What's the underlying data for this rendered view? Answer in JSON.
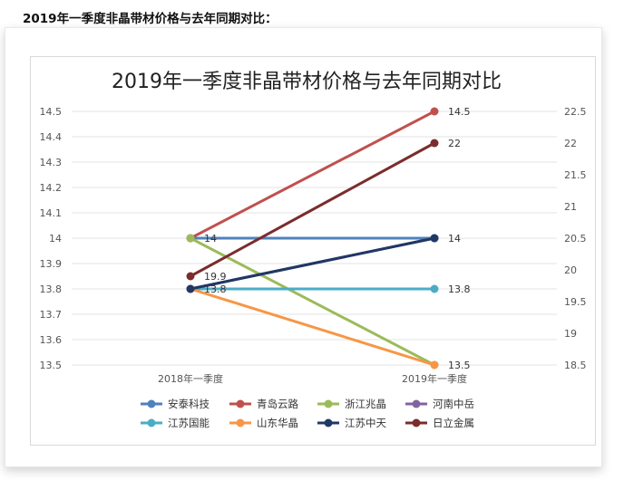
{
  "heading": "2019年一季度非晶带材价格与去年同期对比：",
  "chart_data": {
    "type": "line",
    "title": "2019年一季度非晶带材价格与去年同期对比",
    "categories": [
      "2018年一季度",
      "2019年一季度"
    ],
    "y_left": {
      "min": 13.5,
      "max": 14.5,
      "ticks": [
        "13.5",
        "13.6",
        "13.7",
        "13.8",
        "13.9",
        "14",
        "14.1",
        "14.2",
        "14.3",
        "14.4",
        "14.5"
      ]
    },
    "y_right": {
      "min": 18.5,
      "max": 22.5,
      "ticks": [
        "18.5",
        "19",
        "19.5",
        "20",
        "20.5",
        "21",
        "21.5",
        "22",
        "22.5"
      ]
    },
    "grid": true,
    "legend_position": "bottom",
    "series": [
      {
        "name": "安泰科技",
        "color": "#4f81bd",
        "axis": "left",
        "values": [
          14,
          14
        ]
      },
      {
        "name": "青岛云路",
        "color": "#c0504d",
        "axis": "left",
        "values": [
          14,
          14.5
        ]
      },
      {
        "name": "浙江兆晶",
        "color": "#9bbb59",
        "axis": "left",
        "values": [
          14,
          13.5
        ]
      },
      {
        "name": "河南中岳",
        "color": "#8064a2",
        "axis": "left",
        "values": [
          13.8,
          14
        ]
      },
      {
        "name": "江苏国能",
        "color": "#4bacc6",
        "axis": "left",
        "values": [
          13.8,
          13.8
        ]
      },
      {
        "name": "山东华晶",
        "color": "#f79646",
        "axis": "left",
        "values": [
          13.8,
          13.5
        ]
      },
      {
        "name": "江苏中天",
        "color": "#1f3864",
        "axis": "left",
        "values": [
          13.8,
          14
        ]
      },
      {
        "name": "日立金属",
        "color": "#7b2c2c",
        "axis": "right",
        "values": [
          19.9,
          22
        ]
      }
    ],
    "data_labels": [
      {
        "category": 0,
        "value": 14,
        "axis": "left",
        "text": "14"
      },
      {
        "category": 0,
        "value": 13.8,
        "axis": "left",
        "text": "13.8"
      },
      {
        "category": 0,
        "value": 19.9,
        "axis": "right",
        "text": "19.9"
      },
      {
        "category": 1,
        "value": 14.5,
        "axis": "left",
        "text": "14.5"
      },
      {
        "category": 1,
        "value": 22,
        "axis": "right",
        "text": "22"
      },
      {
        "category": 1,
        "value": 14,
        "axis": "left",
        "text": "14"
      },
      {
        "category": 1,
        "value": 13.8,
        "axis": "left",
        "text": "13.8"
      },
      {
        "category": 1,
        "value": 13.5,
        "axis": "left",
        "text": "13.5"
      }
    ]
  }
}
